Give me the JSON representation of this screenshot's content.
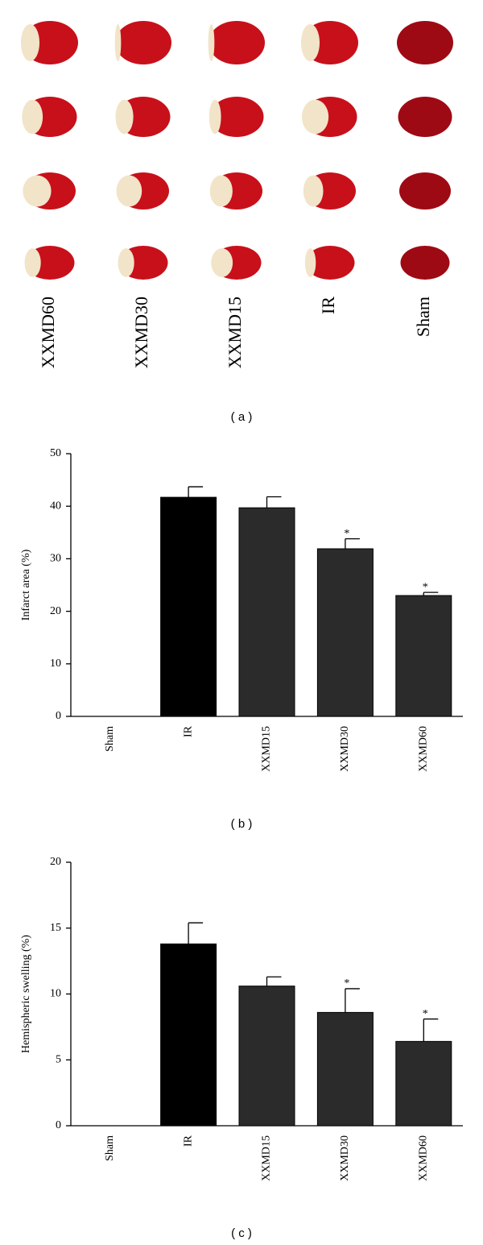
{
  "panel_a": {
    "labels": [
      "XXMD60",
      "XXMD30",
      "XXMD15",
      "IR",
      "Sham"
    ],
    "caption": "( a )"
  },
  "chart_data": [
    {
      "type": "bar",
      "ylabel": "Infarct area (%)",
      "caption": "( b )",
      "categories": [
        "Sham",
        "IR",
        "XXMD15",
        "XXMD30",
        "XXMD60"
      ],
      "values": [
        0,
        41.7,
        39.7,
        31.9,
        23.0
      ],
      "errors": [
        0,
        2.0,
        2.1,
        1.9,
        0.6
      ],
      "colors": [
        "#2b2b2b",
        "#000000",
        "#2b2b2b",
        "#2b2b2b",
        "#2b2b2b"
      ],
      "annotations": [
        {
          "category": "XXMD30",
          "text": "*"
        },
        {
          "category": "XXMD60",
          "text": "*"
        }
      ],
      "ylim": [
        0,
        50
      ],
      "yticks": [
        0,
        10,
        20,
        30,
        40,
        50
      ]
    },
    {
      "type": "bar",
      "ylabel": "Hemispheric swelling (%)",
      "caption": "( c )",
      "categories": [
        "Sham",
        "IR",
        "XXMD15",
        "XXMD30",
        "XXMD60"
      ],
      "values": [
        0,
        13.8,
        10.6,
        8.6,
        6.4
      ],
      "errors": [
        0,
        1.6,
        0.7,
        1.8,
        1.7
      ],
      "colors": [
        "#2b2b2b",
        "#000000",
        "#2b2b2b",
        "#2b2b2b",
        "#2b2b2b"
      ],
      "annotations": [
        {
          "category": "XXMD30",
          "text": "*"
        },
        {
          "category": "XXMD60",
          "text": "*"
        }
      ],
      "ylim": [
        0,
        20
      ],
      "yticks": [
        0,
        5,
        10,
        15,
        20
      ]
    }
  ]
}
